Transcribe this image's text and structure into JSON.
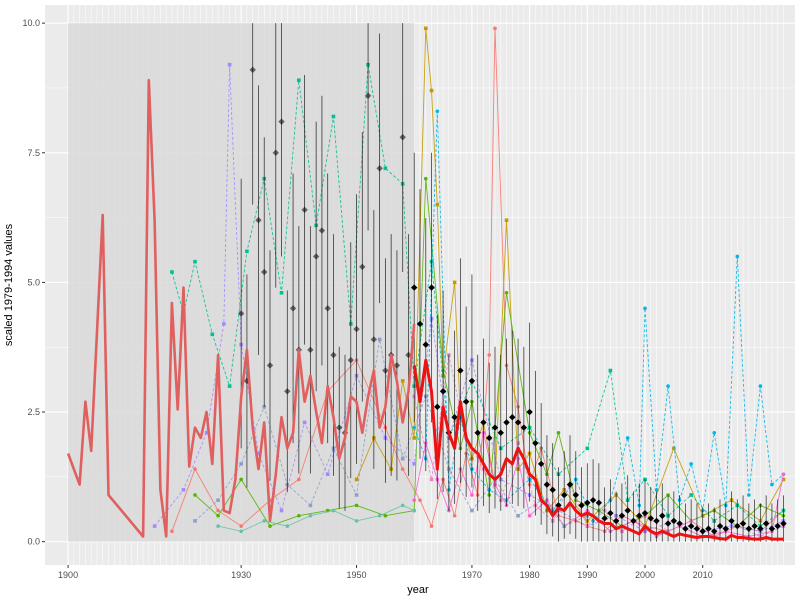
{
  "chart_data": {
    "type": "line",
    "title": "",
    "xlabel": "year",
    "ylabel": "scaled 1979-1994 values",
    "xlim": [
      1896,
      2026
    ],
    "ylim": [
      -0.45,
      10.35
    ],
    "x_ticks": [
      1900,
      1930,
      1950,
      1970,
      1980,
      1990,
      2000,
      2010
    ],
    "x_tick_labels": [
      "1900",
      "1930",
      "1950",
      "1970",
      "1980",
      "1990",
      "2000",
      "2010"
    ],
    "y_ticks": [
      0,
      2.5,
      5,
      7.5,
      10
    ],
    "y_tick_labels": [
      "0.0",
      "2.5",
      "5.0",
      "7.5",
      "10.0"
    ],
    "grid": true,
    "legend": "none",
    "shaded_region": {
      "x": [
        1900,
        1960
      ],
      "y": [
        0,
        10
      ],
      "color": "#d9d9d9"
    },
    "background_color": "#ebebeb",
    "mean_series_color": "#000000",
    "trend_color": "#ee1111",
    "early_trend_color": "#e06060",
    "series_colors": [
      "#f8766d",
      "#c49a00",
      "#53b400",
      "#00c094",
      "#00b6eb",
      "#a58aff",
      "#fb61d7",
      "#8da0cb",
      "#66c2a5",
      "#e78ac3"
    ],
    "early_trend": {
      "x": [
        1900,
        1902,
        1903,
        1904,
        1906,
        1907,
        1913,
        1914,
        1915,
        1916,
        1917,
        1918,
        1919,
        1920,
        1921,
        1922,
        1923,
        1924,
        1925,
        1926,
        1927,
        1928,
        1929,
        1930,
        1931,
        1932,
        1933,
        1934,
        1935,
        1936,
        1937,
        1938,
        1939,
        1940,
        1941,
        1942,
        1943,
        1944,
        1945,
        1946,
        1947,
        1948,
        1949,
        1950,
        1951,
        1952,
        1953,
        1954,
        1955,
        1956,
        1957,
        1958,
        1959,
        1960
      ],
      "y": [
        1.7,
        1.1,
        2.7,
        1.75,
        6.3,
        0.9,
        0.1,
        8.9,
        6.2,
        1.0,
        0.1,
        4.6,
        2.55,
        4.9,
        1.45,
        2.2,
        2.0,
        2.5,
        1.5,
        3.6,
        0.6,
        0.55,
        1.2,
        2.8,
        3.7,
        2.2,
        1.4,
        2.3,
        0.4,
        1.3,
        2.4,
        1.8,
        2.1,
        3.7,
        2.7,
        3.2,
        2.5,
        1.9,
        3.0,
        2.4,
        1.6,
        2.0,
        2.8,
        2.7,
        2.1,
        2.8,
        3.3,
        2.2,
        2.6,
        3.6,
        3.1,
        2.3,
        2.9,
        4.2
      ]
    },
    "trend": {
      "x": [
        1960,
        1961,
        1962,
        1963,
        1964,
        1965,
        1966,
        1967,
        1968,
        1969,
        1970,
        1971,
        1972,
        1973,
        1974,
        1975,
        1976,
        1977,
        1978,
        1979,
        1980,
        1981,
        1982,
        1983,
        1984,
        1985,
        1986,
        1987,
        1988,
        1989,
        1990,
        1991,
        1992,
        1993,
        1994,
        1995,
        1996,
        1997,
        1998,
        1999,
        2000,
        2001,
        2002,
        2003,
        2004,
        2005,
        2006,
        2007,
        2008,
        2009,
        2010,
        2011,
        2012,
        2013,
        2014,
        2015,
        2016,
        2017,
        2018,
        2019,
        2020,
        2021,
        2022,
        2023,
        2024
      ],
      "y": [
        3.4,
        2.7,
        3.5,
        2.9,
        1.4,
        2.6,
        2.1,
        1.8,
        2.7,
        2.0,
        1.8,
        1.7,
        1.5,
        1.3,
        1.2,
        1.3,
        1.6,
        1.5,
        1.8,
        1.6,
        1.3,
        1.2,
        0.8,
        0.7,
        0.5,
        0.65,
        0.6,
        0.75,
        0.6,
        0.5,
        0.55,
        0.5,
        0.4,
        0.35,
        0.35,
        0.25,
        0.3,
        0.25,
        0.2,
        0.15,
        0.3,
        0.2,
        0.15,
        0.2,
        0.15,
        0.1,
        0.15,
        0.12,
        0.1,
        0.08,
        0.1,
        0.1,
        0.08,
        0.06,
        0.05,
        0.12,
        0.08,
        0.08,
        0.06,
        0.05,
        0.05,
        0.08,
        0.05,
        0.05,
        0.05
      ]
    },
    "mean_series": {
      "x": [
        1930,
        1931,
        1932,
        1933,
        1934,
        1935,
        1936,
        1937,
        1938,
        1939,
        1940,
        1941,
        1942,
        1943,
        1944,
        1945,
        1946,
        1947,
        1948,
        1949,
        1950,
        1951,
        1952,
        1953,
        1954,
        1955,
        1956,
        1957,
        1958,
        1959,
        1960,
        1961,
        1962,
        1963,
        1964,
        1965,
        1966,
        1967,
        1968,
        1969,
        1970,
        1971,
        1972,
        1973,
        1974,
        1975,
        1976,
        1977,
        1978,
        1979,
        1980,
        1981,
        1982,
        1983,
        1984,
        1985,
        1986,
        1987,
        1988,
        1989,
        1990,
        1991,
        1992,
        1993,
        1994,
        1995,
        1996,
        1997,
        1998,
        1999,
        2000,
        2001,
        2002,
        2003,
        2004,
        2005,
        2006,
        2007,
        2008,
        2009,
        2010,
        2011,
        2012,
        2013,
        2014,
        2015,
        2016,
        2017,
        2018,
        2019,
        2020,
        2021,
        2022,
        2023,
        2024
      ],
      "y": [
        4.4,
        3.1,
        9.1,
        6.2,
        5.2,
        3.4,
        7.5,
        8.1,
        2.9,
        4.5,
        3.7,
        6.4,
        3.7,
        5.5,
        6.0,
        4.5,
        3.6,
        2.2,
        2.1,
        3.5,
        4.1,
        5.3,
        8.6,
        3.9,
        7.2,
        3.3,
        3.6,
        3.4,
        7.8,
        3.6,
        4.9,
        4.2,
        3.8,
        4.9,
        2.6,
        2.9,
        2.1,
        2.4,
        3.3,
        2.7,
        3.1,
        2.1,
        2.3,
        2.0,
        2.2,
        2.1,
        2.3,
        2.4,
        2.3,
        2.2,
        2.5,
        1.9,
        1.5,
        1.1,
        1.0,
        0.7,
        0.9,
        1.1,
        0.9,
        0.7,
        0.75,
        0.8,
        0.75,
        0.45,
        0.55,
        0.4,
        0.5,
        0.6,
        0.4,
        0.5,
        0.55,
        0.45,
        0.4,
        0.5,
        0.35,
        0.4,
        0.35,
        0.25,
        0.3,
        0.25,
        0.2,
        0.25,
        0.2,
        0.3,
        0.25,
        0.4,
        0.3,
        0.35,
        0.25,
        0.3,
        0.25,
        0.35,
        0.25,
        0.3,
        0.35
      ]
    },
    "series": [
      {
        "color": "#f8766d",
        "style": "solid",
        "x": [
          1918,
          1922,
          1926,
          1930,
          1935,
          1940,
          1945,
          1950,
          1955,
          1958,
          1961,
          1963,
          1965,
          1967,
          1969,
          1971,
          1973,
          1974,
          1976,
          1978,
          1980,
          1982,
          1985,
          1988,
          1990,
          1993,
          1996,
          2000,
          2004,
          2008,
          2012,
          2016,
          2020,
          2024
        ],
        "y": [
          0.2,
          1.4,
          0.6,
          0.3,
          0.8,
          1.2,
          2.9,
          3.5,
          2.2,
          1.4,
          0.8,
          0.3,
          1.2,
          0.5,
          1.7,
          0.9,
          3.6,
          9.9,
          3.4,
          2.6,
          1.1,
          1.8,
          0.5,
          0.4,
          0.3,
          0.2,
          0.5,
          0.3,
          0.2,
          0.4,
          0.1,
          0.3,
          0.2,
          0.6
        ]
      },
      {
        "color": "#c49a00",
        "style": "solid",
        "x": [
          1950,
          1953,
          1956,
          1958,
          1960,
          1962,
          1963,
          1964,
          1965,
          1967,
          1968,
          1970,
          1972,
          1974,
          1976,
          1978,
          1980,
          1983,
          1986,
          1990,
          1995,
          2000,
          2005,
          2010,
          2015,
          2020,
          2024
        ],
        "y": [
          1.2,
          2.0,
          1.4,
          3.1,
          2.0,
          9.9,
          8.7,
          6.5,
          3.2,
          5.0,
          2.4,
          1.6,
          2.3,
          1.1,
          6.2,
          1.4,
          1.7,
          0.6,
          1.0,
          0.4,
          0.9,
          0.3,
          1.8,
          0.5,
          0.8,
          0.4,
          1.2
        ]
      },
      {
        "color": "#53b400",
        "style": "solid",
        "x": [
          1922,
          1926,
          1930,
          1935,
          1940,
          1945,
          1950,
          1955,
          1960,
          1962,
          1965,
          1968,
          1970,
          1973,
          1976,
          1980,
          1983,
          1985,
          1988,
          1992,
          1996,
          2000,
          2004,
          2008,
          2012,
          2016,
          2020,
          2024
        ],
        "y": [
          0.9,
          0.5,
          1.2,
          0.3,
          0.5,
          0.6,
          0.7,
          0.5,
          0.6,
          7.0,
          3.3,
          1.8,
          2.7,
          0.9,
          4.8,
          2.1,
          1.3,
          2.1,
          0.8,
          0.6,
          0.3,
          0.5,
          0.9,
          0.4,
          0.6,
          0.3,
          0.7,
          0.5
        ]
      },
      {
        "color": "#00c094",
        "style": "dashed",
        "x": [
          1918,
          1920,
          1922,
          1925,
          1928,
          1931,
          1934,
          1937,
          1940,
          1943,
          1946,
          1949,
          1952,
          1955,
          1958,
          1960,
          1963,
          1966,
          1970,
          1975,
          1980,
          1985,
          1990,
          1994,
          1997,
          2000,
          2004,
          2008,
          2012,
          2016,
          2020,
          2024
        ],
        "y": [
          5.2,
          4.4,
          5.4,
          4.0,
          3.0,
          5.6,
          7.0,
          4.8,
          8.9,
          6.1,
          8.2,
          4.2,
          9.2,
          7.2,
          6.9,
          3.0,
          5.4,
          2.0,
          3.1,
          1.8,
          2.2,
          1.3,
          1.8,
          3.3,
          0.8,
          1.2,
          0.5,
          0.9,
          0.4,
          0.7,
          0.3,
          0.6
        ]
      },
      {
        "color": "#00b6eb",
        "style": "dashed",
        "x": [
          1960,
          1962,
          1964,
          1966,
          1968,
          1970,
          1973,
          1976,
          1980,
          1984,
          1988,
          1991,
          1994,
          1997,
          1999,
          2000,
          2002,
          2004,
          2006,
          2008,
          2010,
          2012,
          2014,
          2016,
          2018,
          2020,
          2022,
          2024
        ],
        "y": [
          2.2,
          1.6,
          8.3,
          1.0,
          2.4,
          1.4,
          1.0,
          0.8,
          1.2,
          0.6,
          1.2,
          0.4,
          0.8,
          2.0,
          0.7,
          4.5,
          1.0,
          3.0,
          0.8,
          1.5,
          0.6,
          2.1,
          0.7,
          5.5,
          0.9,
          3.0,
          1.1,
          1.3
        ]
      },
      {
        "color": "#a58aff",
        "style": "dashed",
        "x": [
          1915,
          1920,
          1924,
          1927,
          1928,
          1930,
          1933,
          1937,
          1941,
          1945,
          1950,
          1955,
          1960,
          1963,
          1966,
          1970,
          1975,
          1980,
          1985,
          1990,
          1995,
          2000,
          2005,
          2010,
          2015,
          2020,
          2024
        ],
        "y": [
          0.3,
          1.0,
          2.1,
          4.2,
          9.2,
          3.8,
          1.7,
          0.6,
          2.3,
          1.3,
          3.2,
          2.0,
          1.5,
          4.3,
          2.0,
          3.5,
          1.2,
          0.9,
          0.6,
          0.3,
          0.5,
          0.2,
          0.4,
          0.2,
          0.3,
          0.2,
          0.4
        ]
      },
      {
        "color": "#fb61d7",
        "style": "solid",
        "x": [
          1960,
          1962,
          1964,
          1966,
          1968,
          1970,
          1972,
          1974,
          1976,
          1978,
          1980,
          1983,
          1986,
          1990,
          1994,
          1998,
          2002,
          2006,
          2010,
          2014,
          2018,
          2022,
          2024
        ],
        "y": [
          0.8,
          1.9,
          1.2,
          0.6,
          1.4,
          0.9,
          2.1,
          1.1,
          0.7,
          1.6,
          0.5,
          0.8,
          0.3,
          0.6,
          0.2,
          0.4,
          0.1,
          0.3,
          0.1,
          0.2,
          0.1,
          0.2,
          1.3
        ]
      },
      {
        "color": "#8da0cb",
        "style": "dashed",
        "x": [
          1922,
          1926,
          1930,
          1934,
          1938,
          1942,
          1946,
          1950,
          1954,
          1958,
          1962,
          1966,
          1970,
          1974,
          1978,
          1982,
          1986,
          1990
        ],
        "y": [
          0.4,
          0.8,
          1.5,
          2.6,
          1.1,
          0.7,
          1.8,
          0.9,
          3.9,
          1.6,
          2.8,
          1.4,
          0.6,
          1.2,
          0.5,
          0.8,
          0.3,
          0.5
        ]
      },
      {
        "color": "#66c2a5",
        "style": "solid",
        "x": [
          1926,
          1930,
          1934,
          1938,
          1942,
          1946,
          1950,
          1954,
          1958,
          1960
        ],
        "y": [
          0.3,
          0.2,
          0.4,
          0.3,
          0.5,
          0.6,
          0.4,
          0.5,
          0.7,
          0.6
        ]
      },
      {
        "color": "#e78ac3",
        "style": "dashed",
        "x": [
          1960,
          1963,
          1966,
          1969,
          1972,
          1975,
          1978,
          1981,
          1984,
          1987,
          1990,
          1993,
          1996,
          2000,
          2004,
          2008,
          2012,
          2016,
          2020,
          2024
        ],
        "y": [
          2.8,
          1.2,
          3.6,
          2.0,
          1.4,
          0.8,
          1.9,
          0.7,
          0.4,
          1.1,
          0.3,
          0.6,
          0.2,
          0.5,
          0.2,
          0.4,
          0.1,
          0.3,
          0.1,
          0.3
        ]
      }
    ]
  }
}
